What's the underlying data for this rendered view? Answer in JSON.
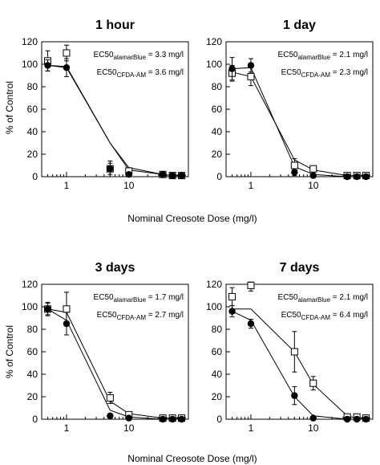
{
  "chart_data": [
    {
      "type": "scatter",
      "title": "1 hour",
      "xscale": "log",
      "xlim": [
        0.4,
        90
      ],
      "ylim": [
        0,
        120
      ],
      "yticks": [
        0,
        20,
        40,
        60,
        80,
        100,
        120
      ],
      "xticks": [
        1,
        10
      ],
      "annotations": [
        {
          "prefix": "EC50",
          "sub": "alamarBlue",
          "text": " = 3.3 mg/l"
        },
        {
          "prefix": "EC50",
          "sub": "CFDA-AM",
          "text": " = 3.6 mg/l"
        }
      ],
      "series": [
        {
          "marker": "open-square",
          "points": [
            {
              "x": 0.5,
              "y": 103,
              "err": 9
            },
            {
              "x": 1,
              "y": 110,
              "err": 7
            },
            {
              "x": 5,
              "y": 7,
              "err": 7
            },
            {
              "x": 10,
              "y": 5,
              "err": 3
            },
            {
              "x": 35,
              "y": 2,
              "err": 1
            },
            {
              "x": 50,
              "y": 1,
              "err": 1
            },
            {
              "x": 70,
              "y": 1,
              "err": 1
            }
          ]
        },
        {
          "marker": "filled-circle",
          "points": [
            {
              "x": 0.5,
              "y": 99,
              "err": 5
            },
            {
              "x": 1,
              "y": 97,
              "err": 8
            },
            {
              "x": 5,
              "y": 7,
              "err": 5
            },
            {
              "x": 10,
              "y": 2,
              "err": 2
            },
            {
              "x": 35,
              "y": 2,
              "err": 1
            },
            {
              "x": 50,
              "y": 1,
              "err": 1
            },
            {
              "x": 70,
              "y": 1,
              "err": 1
            }
          ]
        }
      ],
      "fits": [
        {
          "line": [
            [
              0.5,
              99
            ],
            [
              1,
              98
            ],
            [
              5,
              30
            ],
            [
              10,
              8
            ],
            [
              35,
              2
            ],
            [
              50,
              1
            ],
            [
              70,
              1
            ]
          ]
        },
        {
          "line": [
            [
              0.5,
              99
            ],
            [
              1,
              97
            ],
            [
              5,
              30
            ],
            [
              10,
              6
            ],
            [
              35,
              2
            ],
            [
              50,
              1
            ],
            [
              70,
              1
            ]
          ]
        }
      ]
    },
    {
      "type": "scatter",
      "title": "1 day",
      "xscale": "log",
      "xlim": [
        0.4,
        90
      ],
      "ylim": [
        0,
        120
      ],
      "yticks": [
        0,
        20,
        40,
        60,
        80,
        100,
        120
      ],
      "xticks": [
        1,
        10
      ],
      "annotations": [
        {
          "prefix": "EC50",
          "sub": "alamarBlue",
          "text": " = 2.1 mg/l"
        },
        {
          "prefix": "EC50",
          "sub": "CFDA-AM",
          "text": " = 2.3 mg/l"
        }
      ],
      "series": [
        {
          "marker": "open-square",
          "points": [
            {
              "x": 0.5,
              "y": 92,
              "err": 7
            },
            {
              "x": 1,
              "y": 89,
              "err": 8
            },
            {
              "x": 5,
              "y": 10,
              "err": 6
            },
            {
              "x": 10,
              "y": 7,
              "err": 2
            },
            {
              "x": 35,
              "y": 1,
              "err": 1
            },
            {
              "x": 50,
              "y": 1,
              "err": 1
            },
            {
              "x": 70,
              "y": 1,
              "err": 1
            }
          ]
        },
        {
          "marker": "filled-circle",
          "points": [
            {
              "x": 0.5,
              "y": 96,
              "err": 10
            },
            {
              "x": 1,
              "y": 99,
              "err": 6
            },
            {
              "x": 5,
              "y": 4,
              "err": 3
            },
            {
              "x": 10,
              "y": 1,
              "err": 1
            },
            {
              "x": 35,
              "y": 0,
              "err": 1
            },
            {
              "x": 50,
              "y": 0,
              "err": 1
            },
            {
              "x": 70,
              "y": 0,
              "err": 1
            }
          ]
        }
      ],
      "fits": [
        {
          "line": [
            [
              0.5,
              93
            ],
            [
              1,
              89
            ],
            [
              5,
              15
            ],
            [
              10,
              6
            ],
            [
              35,
              1
            ],
            [
              50,
              1
            ],
            [
              70,
              1
            ]
          ]
        },
        {
          "line": [
            [
              0.5,
              96
            ],
            [
              1,
              97
            ],
            [
              5,
              9
            ],
            [
              10,
              2
            ],
            [
              35,
              0
            ],
            [
              50,
              0
            ],
            [
              70,
              0
            ]
          ]
        }
      ]
    },
    {
      "type": "scatter",
      "title": "3 days",
      "xscale": "log",
      "xlim": [
        0.4,
        90
      ],
      "ylim": [
        0,
        120
      ],
      "yticks": [
        0,
        20,
        40,
        60,
        80,
        100,
        120
      ],
      "xticks": [
        1,
        10
      ],
      "annotations": [
        {
          "prefix": "EC50",
          "sub": "alamarBlue",
          "text": " = 1.7 mg/l"
        },
        {
          "prefix": "EC50",
          "sub": "CFDA-AM",
          "text": " = 2.7 mg/l"
        }
      ],
      "series": [
        {
          "marker": "open-square",
          "points": [
            {
              "x": 0.5,
              "y": 98,
              "err": 6
            },
            {
              "x": 1,
              "y": 98,
              "err": 15
            },
            {
              "x": 5,
              "y": 19,
              "err": 5
            },
            {
              "x": 10,
              "y": 4,
              "err": 2
            },
            {
              "x": 35,
              "y": 1,
              "err": 1
            },
            {
              "x": 50,
              "y": 1,
              "err": 1
            },
            {
              "x": 70,
              "y": 1,
              "err": 1
            }
          ]
        },
        {
          "marker": "filled-circle",
          "points": [
            {
              "x": 0.5,
              "y": 98,
              "err": 5
            },
            {
              "x": 1,
              "y": 85,
              "err": 10
            },
            {
              "x": 5,
              "y": 3,
              "err": 2
            },
            {
              "x": 10,
              "y": 1,
              "err": 1
            },
            {
              "x": 35,
              "y": 0,
              "err": 1
            },
            {
              "x": 50,
              "y": 0,
              "err": 1
            },
            {
              "x": 70,
              "y": 0,
              "err": 1
            }
          ]
        }
      ],
      "fits": [
        {
          "line": [
            [
              0.5,
              98
            ],
            [
              1,
              95
            ],
            [
              5,
              16
            ],
            [
              10,
              5
            ],
            [
              35,
              1
            ],
            [
              50,
              1
            ],
            [
              70,
              1
            ]
          ]
        },
        {
          "line": [
            [
              0.5,
              98
            ],
            [
              1,
              88
            ],
            [
              5,
              8
            ],
            [
              10,
              2
            ],
            [
              35,
              0
            ],
            [
              50,
              0
            ],
            [
              70,
              0
            ]
          ]
        }
      ]
    },
    {
      "type": "scatter",
      "title": "7 days",
      "xscale": "log",
      "xlim": [
        0.4,
        90
      ],
      "ylim": [
        0,
        120
      ],
      "yticks": [
        0,
        20,
        40,
        60,
        80,
        100,
        120
      ],
      "xticks": [
        1,
        10
      ],
      "annotations": [
        {
          "prefix": "EC50",
          "sub": "alamarBlue",
          "text": " = 2.1 mg/l"
        },
        {
          "prefix": "EC50",
          "sub": "CFDA-AM",
          "text": " = 6.4 mg/l"
        }
      ],
      "series": [
        {
          "marker": "open-square",
          "points": [
            {
              "x": 0.5,
              "y": 109,
              "err": 8
            },
            {
              "x": 1,
              "y": 119,
              "err": 5
            },
            {
              "x": 5,
              "y": 60,
              "err": 18
            },
            {
              "x": 10,
              "y": 32,
              "err": 6
            },
            {
              "x": 35,
              "y": 2,
              "err": 2
            },
            {
              "x": 50,
              "y": 2,
              "err": 2
            },
            {
              "x": 70,
              "y": 1,
              "err": 1
            }
          ]
        },
        {
          "marker": "filled-circle",
          "points": [
            {
              "x": 0.5,
              "y": 96,
              "err": 5
            },
            {
              "x": 1,
              "y": 85,
              "err": 4
            },
            {
              "x": 5,
              "y": 21,
              "err": 8
            },
            {
              "x": 10,
              "y": 1,
              "err": 1
            },
            {
              "x": 35,
              "y": 0,
              "err": 1
            },
            {
              "x": 50,
              "y": 0,
              "err": 1
            },
            {
              "x": 70,
              "y": 0,
              "err": 1
            }
          ]
        }
      ],
      "fits": [
        {
          "line": [
            [
              0.5,
              98
            ],
            [
              1,
              98
            ],
            [
              5,
              60
            ],
            [
              10,
              31
            ],
            [
              35,
              3
            ],
            [
              50,
              1
            ],
            [
              70,
              1
            ]
          ]
        },
        {
          "line": [
            [
              0.5,
              96
            ],
            [
              1,
              88
            ],
            [
              5,
              20
            ],
            [
              10,
              3
            ],
            [
              35,
              0
            ],
            [
              50,
              0
            ],
            [
              70,
              0
            ]
          ]
        }
      ]
    }
  ],
  "ylabel": "% of Control",
  "xlabel": "Nominal Creosote Dose (mg/l)"
}
